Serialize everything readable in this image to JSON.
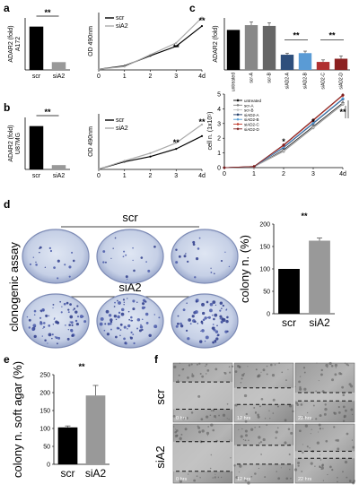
{
  "panels": {
    "a": "a",
    "b": "b",
    "c": "c",
    "d": "d",
    "e": "e",
    "f": "f"
  },
  "chart_data": [
    {
      "id": "a-bar",
      "type": "bar",
      "ylabel": "ADAR2 (fold)\nA172",
      "categories": [
        "scr",
        "siA2"
      ],
      "values": [
        1.0,
        0.18
      ],
      "ylim": [
        0,
        1.2
      ],
      "colors": [
        "#000000",
        "#999999"
      ],
      "annotation": "**"
    },
    {
      "id": "a-line",
      "type": "line",
      "ylabel": "OD 490nm",
      "xlabel": "",
      "x": [
        0,
        1,
        2,
        3,
        4
      ],
      "xticklabels": [
        "0",
        "1",
        "2",
        "3",
        "4d"
      ],
      "ylim": [
        0,
        1.7
      ],
      "series": [
        {
          "name": "scr",
          "color": "#000000",
          "values": [
            0.02,
            0.12,
            0.42,
            0.7,
            1.3
          ]
        },
        {
          "name": "siA2",
          "color": "#aaaaaa",
          "values": [
            0.02,
            0.1,
            0.45,
            0.8,
            1.55
          ]
        }
      ],
      "annotations": [
        {
          "x": 3,
          "text": "**"
        },
        {
          "x": 4,
          "text": "**"
        }
      ]
    },
    {
      "id": "b-bar",
      "type": "bar",
      "ylabel": "ADAR2 (fold)\nU87MG",
      "categories": [
        "scr",
        "siA2"
      ],
      "values": [
        1.0,
        0.1
      ],
      "ylim": [
        0,
        1.2
      ],
      "colors": [
        "#000000",
        "#999999"
      ],
      "annotation": "**"
    },
    {
      "id": "b-line",
      "type": "line",
      "ylabel": "OD 490nm",
      "xlabel": "",
      "x": [
        0,
        1,
        2,
        3,
        4
      ],
      "xticklabels": [
        "0",
        "1",
        "2",
        "3",
        "4d"
      ],
      "ylim": [
        0,
        1.3
      ],
      "series": [
        {
          "name": "scr",
          "color": "#000000",
          "values": [
            0.01,
            0.18,
            0.3,
            0.48,
            0.78
          ]
        },
        {
          "name": "siA2",
          "color": "#aaaaaa",
          "values": [
            0.01,
            0.2,
            0.38,
            0.62,
            1.05
          ]
        }
      ],
      "annotations": [
        {
          "x": 3,
          "text": "**"
        },
        {
          "x": 4,
          "text": "**"
        }
      ]
    },
    {
      "id": "c-bar",
      "type": "bar",
      "ylabel": "ADAR2 (fold)",
      "categories": [
        "untreated",
        "scr-A",
        "scr-B",
        "siAD2-A",
        "siAD2-B",
        "siAD2-C",
        "siAD2-D"
      ],
      "values": [
        1.0,
        1.12,
        1.1,
        0.38,
        0.42,
        0.2,
        0.28
      ],
      "errors": [
        0.0,
        0.08,
        0.08,
        0.04,
        0.05,
        0.05,
        0.07
      ],
      "ylim": [
        0,
        1.3
      ],
      "colors": [
        "#000000",
        "#888888",
        "#666666",
        "#2e4f7c",
        "#5a9bd5",
        "#b03030",
        "#8b2020"
      ],
      "annotations": [
        {
          "between": [
            3,
            4
          ],
          "text": "**"
        },
        {
          "between": [
            5,
            6
          ],
          "text": "**"
        }
      ]
    },
    {
      "id": "c-line",
      "type": "line",
      "ylabel": "cell n. (1x10⁵)",
      "x": [
        0,
        1,
        2,
        3,
        4
      ],
      "xticklabels": [
        "0",
        "1",
        "2",
        "3",
        "4d"
      ],
      "yticklabels": [
        "0",
        "1",
        "2",
        "3",
        "4",
        "5"
      ],
      "ylim": [
        0,
        5
      ],
      "series": [
        {
          "name": "untreated",
          "color": "#000000",
          "values": [
            0.0,
            0.05,
            1.2,
            2.8,
            4.4
          ]
        },
        {
          "name": "scr-A",
          "color": "#7f7f7f",
          "values": [
            0.0,
            0.05,
            1.1,
            2.7,
            4.3
          ]
        },
        {
          "name": "scr-B",
          "color": "#bfbfbf",
          "values": [
            0.0,
            0.05,
            1.15,
            2.75,
            4.35
          ]
        },
        {
          "name": "siAD2-A",
          "color": "#1f3a66",
          "values": [
            0.0,
            0.07,
            1.35,
            3.0,
            4.65
          ]
        },
        {
          "name": "siAD2-B",
          "color": "#4f9bd5",
          "values": [
            0.0,
            0.07,
            1.4,
            3.05,
            4.7
          ]
        },
        {
          "name": "siAD2-C",
          "color": "#c0392b",
          "values": [
            0.0,
            0.08,
            1.5,
            3.2,
            4.9
          ]
        },
        {
          "name": "siAD2-D",
          "color": "#7b1e1e",
          "values": [
            0.0,
            0.08,
            1.55,
            3.25,
            4.95
          ]
        }
      ],
      "annotations": [
        {
          "x": 2,
          "text": "*"
        },
        {
          "x": 3,
          "text": "*"
        },
        {
          "x": 4,
          "text": "**"
        }
      ]
    },
    {
      "id": "d-bar",
      "type": "bar",
      "ylabel": "colony n. (%)",
      "categories": [
        "scr",
        "siA2"
      ],
      "values": [
        100,
        163
      ],
      "errors": [
        0,
        6
      ],
      "yticks": [
        0,
        50,
        100,
        150,
        200
      ],
      "ylim": [
        0,
        200
      ],
      "colors": [
        "#000000",
        "#999999"
      ],
      "annotation": "**"
    },
    {
      "id": "e-bar",
      "type": "bar",
      "ylabel": "colony n. soft agar (%)",
      "categories": [
        "scr",
        "siA2"
      ],
      "values": [
        103,
        192
      ],
      "errors": [
        4,
        28
      ],
      "yticks": [
        0,
        50,
        100,
        150,
        200,
        250
      ],
      "ylim": [
        0,
        250
      ],
      "colors": [
        "#000000",
        "#999999"
      ],
      "annotation": "**"
    }
  ],
  "clonogenic": {
    "side_label": "clonogenic assay",
    "top_title": "scr",
    "bottom_title": "siA2"
  },
  "migration": {
    "row_labels": [
      "scr",
      "siA2"
    ],
    "time_labels": [
      "0 hrs",
      "12 hrs",
      "22 hrs"
    ]
  }
}
